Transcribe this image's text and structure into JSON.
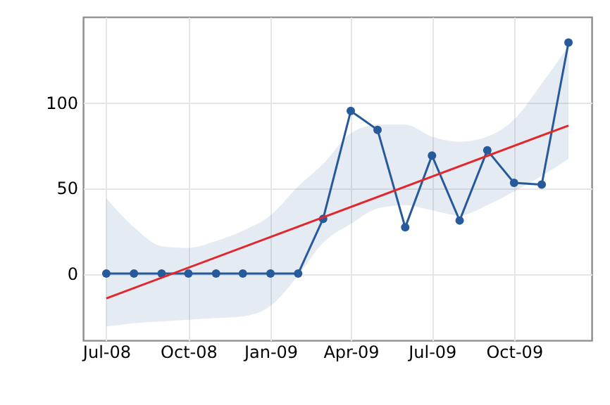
{
  "chart_data": {
    "type": "line",
    "x": [
      "2008-07",
      "2008-08",
      "2008-09",
      "2008-10",
      "2008-11",
      "2008-12",
      "2009-01",
      "2009-02",
      "2009-03",
      "2009-04",
      "2009-05",
      "2009-06",
      "2009-07",
      "2009-08",
      "2009-09",
      "2009-10",
      "2009-11",
      "2009-12"
    ],
    "series": [
      {
        "color": "#275a9b",
        "marker": "circle",
        "values": [
          0,
          0,
          0,
          0,
          0,
          0,
          0,
          0,
          32,
          95,
          84,
          27,
          69,
          31,
          72,
          53,
          52,
          135
        ],
        "lower": [
          -31,
          -29,
          -28,
          -27,
          -26,
          -25,
          -19,
          -1,
          18,
          29,
          38,
          40,
          37,
          34,
          40,
          48,
          57,
          67
        ],
        "upper": [
          44,
          27,
          16,
          15,
          19,
          25,
          34,
          51,
          64,
          82,
          87,
          87,
          80,
          77,
          80,
          90,
          111,
          133
        ]
      },
      {
        "type": "line",
        "color": "#e3262b",
        "marker": "none",
        "x": [
          "2008-07",
          "2009-12"
        ],
        "values": [
          -14.5,
          86.5
        ]
      }
    ],
    "xlim": [
      "2008-06-05",
      "2009-12-27"
    ],
    "xticks": [
      {
        "value": "2008-07",
        "label": "Jul-08"
      },
      {
        "value": "2008-10",
        "label": "Oct-08"
      },
      {
        "value": "2009-01",
        "label": "Jan-09"
      },
      {
        "value": "2009-04",
        "label": "Apr-09"
      },
      {
        "value": "2009-07",
        "label": "Jul-09"
      },
      {
        "value": "2009-10",
        "label": "Oct-09"
      }
    ],
    "ylim": [
      -39,
      150
    ],
    "yticks": [
      0,
      50,
      100
    ],
    "grid": true
  }
}
